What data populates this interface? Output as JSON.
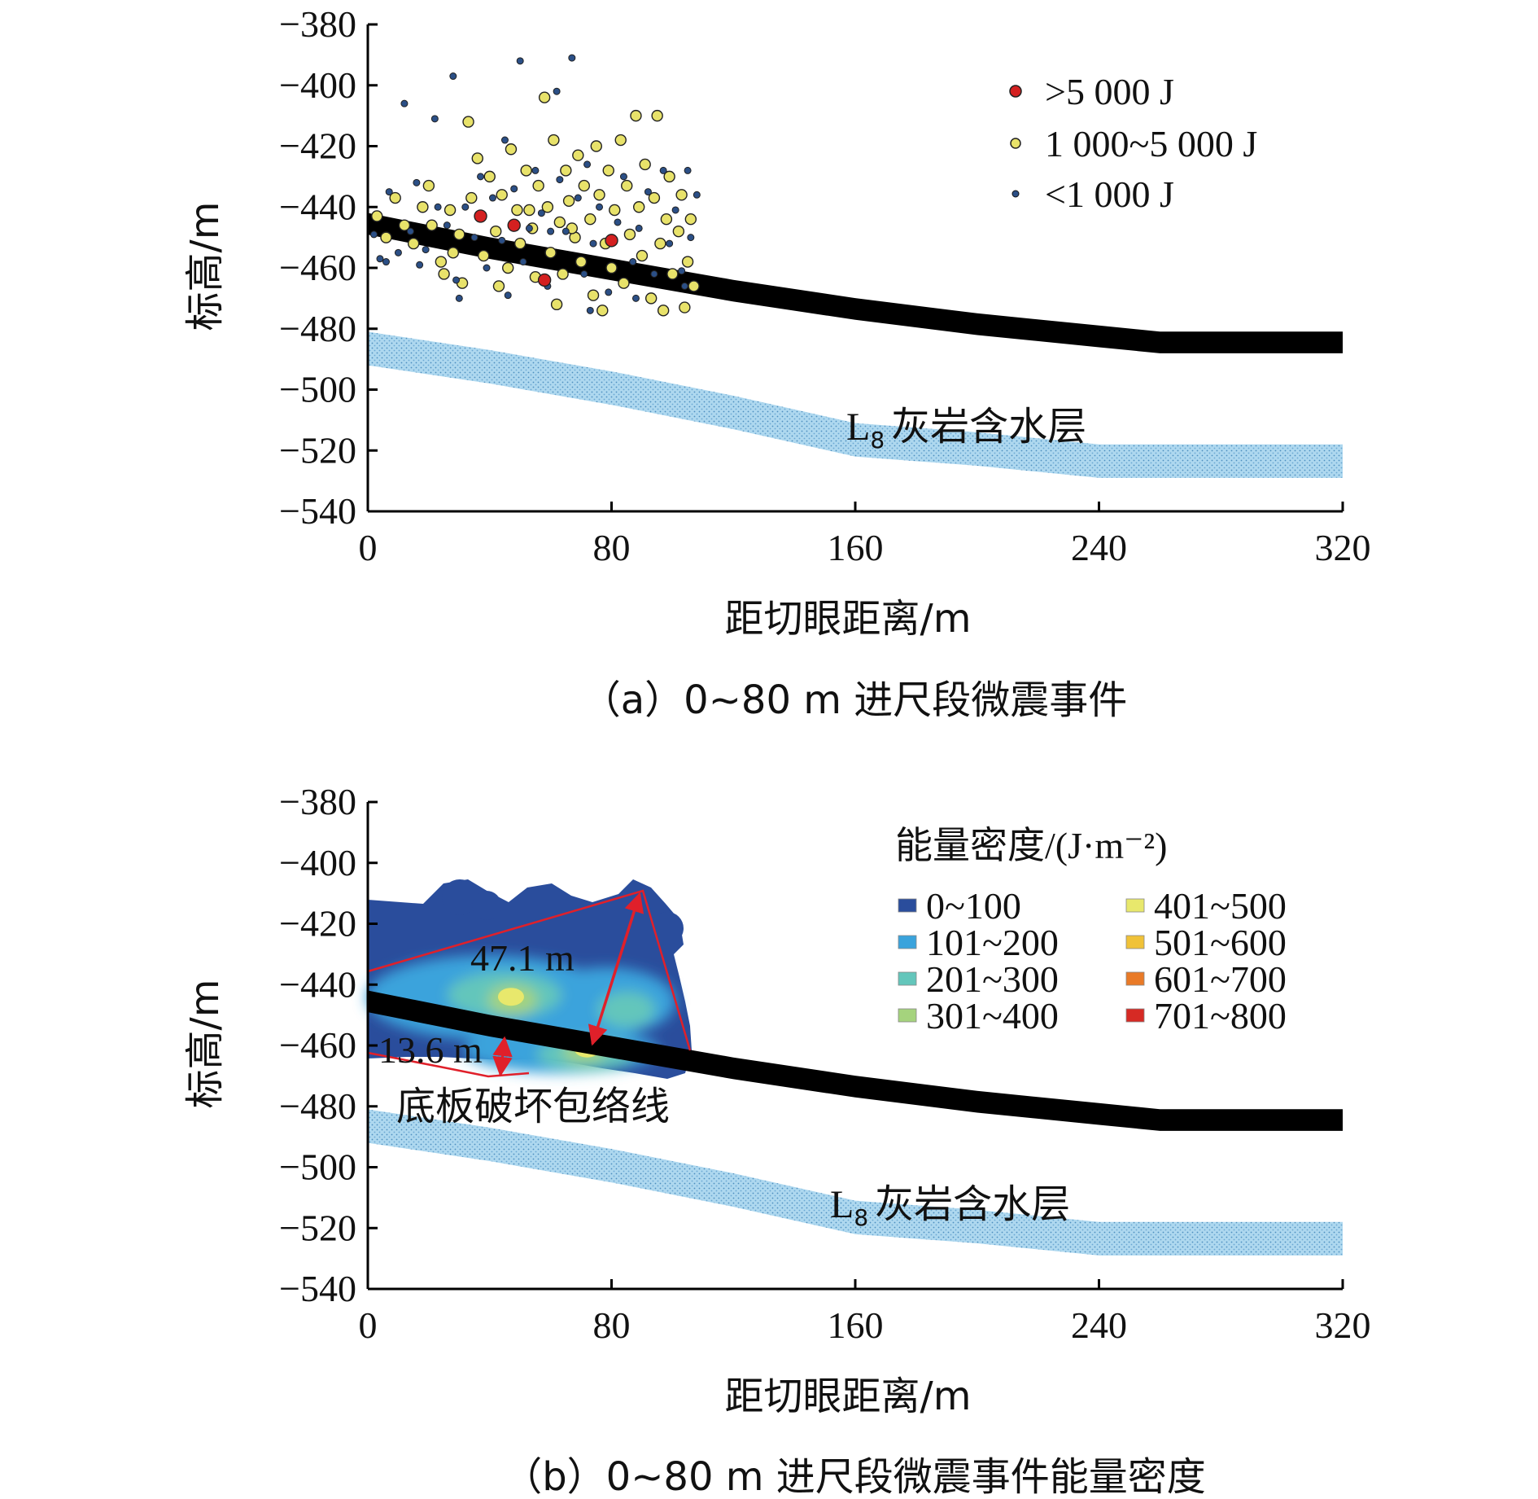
{
  "chart_data": [
    {
      "panel": "a",
      "type": "scatter",
      "caption": "（a）0~80 m 进尺段微震事件",
      "xlabel": "距切眼距离/m",
      "ylabel": "标高/m",
      "xlim": [
        0,
        320
      ],
      "ylim": [
        -540,
        -380
      ],
      "xticks": [
        0,
        80,
        160,
        240,
        320
      ],
      "yticks": [
        -380,
        -400,
        -420,
        -440,
        -460,
        -480,
        -500,
        -520,
        -540
      ],
      "legend_position": "top-right",
      "series": [
        {
          "name": ">5 000 J",
          "color": "#d42020",
          "points": [
            [
              37,
              -443
            ],
            [
              48,
              -446
            ],
            [
              58,
              -464
            ],
            [
              80,
              -451
            ]
          ]
        },
        {
          "name": "1 000~5 000 J",
          "color": "#e8e26a",
          "points": [
            [
              3,
              -443
            ],
            [
              6,
              -450
            ],
            [
              9,
              -437
            ],
            [
              12,
              -446
            ],
            [
              15,
              -452
            ],
            [
              18,
              -440
            ],
            [
              21,
              -446
            ],
            [
              24,
              -458
            ],
            [
              27,
              -441
            ],
            [
              30,
              -449
            ],
            [
              33,
              -412
            ],
            [
              34,
              -437
            ],
            [
              36,
              -424
            ],
            [
              38,
              -456
            ],
            [
              40,
              -430
            ],
            [
              42,
              -448
            ],
            [
              44,
              -436
            ],
            [
              46,
              -460
            ],
            [
              47,
              -421
            ],
            [
              49,
              -441
            ],
            [
              50,
              -452
            ],
            [
              52,
              -428
            ],
            [
              54,
              -447
            ],
            [
              55,
              -463
            ],
            [
              56,
              -433
            ],
            [
              58,
              -404
            ],
            [
              59,
              -440
            ],
            [
              60,
              -455
            ],
            [
              61,
              -418
            ],
            [
              63,
              -445
            ],
            [
              64,
              -462
            ],
            [
              65,
              -428
            ],
            [
              66,
              -438
            ],
            [
              68,
              -450
            ],
            [
              69,
              -423
            ],
            [
              70,
              -458
            ],
            [
              71,
              -433
            ],
            [
              73,
              -444
            ],
            [
              74,
              -469
            ],
            [
              75,
              -420
            ],
            [
              76,
              -436
            ],
            [
              78,
              -452
            ],
            [
              79,
              -428
            ],
            [
              80,
              -460
            ],
            [
              81,
              -441
            ],
            [
              83,
              -418
            ],
            [
              84,
              -465
            ],
            [
              85,
              -433
            ],
            [
              86,
              -449
            ],
            [
              88,
              -410
            ],
            [
              89,
              -440
            ],
            [
              90,
              -456
            ],
            [
              91,
              -426
            ],
            [
              93,
              -470
            ],
            [
              94,
              -437
            ],
            [
              95,
              -410
            ],
            [
              96,
              -452
            ],
            [
              98,
              -444
            ],
            [
              99,
              -430
            ],
            [
              100,
              -462
            ],
            [
              102,
              -448
            ],
            [
              103,
              -436
            ],
            [
              104,
              -473
            ],
            [
              105,
              -458
            ],
            [
              106,
              -444
            ],
            [
              107,
              -466
            ],
            [
              25,
              -462
            ],
            [
              31,
              -465
            ],
            [
              43,
              -466
            ],
            [
              62,
              -472
            ],
            [
              77,
              -474
            ],
            [
              97,
              -474
            ],
            [
              20,
              -433
            ],
            [
              28,
              -455
            ],
            [
              53,
              -441
            ],
            [
              67,
              -447
            ]
          ]
        },
        {
          "name": "<1 000 J",
          "color": "#2b4f86",
          "points": [
            [
              2,
              -449
            ],
            [
              4,
              -457
            ],
            [
              7,
              -435
            ],
            [
              10,
              -455
            ],
            [
              12,
              -406
            ],
            [
              14,
              -448
            ],
            [
              16,
              -432
            ],
            [
              19,
              -454
            ],
            [
              22,
              -411
            ],
            [
              23,
              -440
            ],
            [
              26,
              -446
            ],
            [
              28,
              -397
            ],
            [
              29,
              -464
            ],
            [
              32,
              -440
            ],
            [
              35,
              -450
            ],
            [
              37,
              -430
            ],
            [
              39,
              -460
            ],
            [
              41,
              -437
            ],
            [
              44,
              -451
            ],
            [
              45,
              -418
            ],
            [
              48,
              -434
            ],
            [
              50,
              -392
            ],
            [
              51,
              -458
            ],
            [
              53,
              -447
            ],
            [
              55,
              -428
            ],
            [
              57,
              -442
            ],
            [
              59,
              -466
            ],
            [
              62,
              -402
            ],
            [
              63,
              -431
            ],
            [
              65,
              -448
            ],
            [
              67,
              -391
            ],
            [
              69,
              -437
            ],
            [
              71,
              -462
            ],
            [
              72,
              -426
            ],
            [
              74,
              -452
            ],
            [
              76,
              -440
            ],
            [
              79,
              -468
            ],
            [
              82,
              -445
            ],
            [
              84,
              -430
            ],
            [
              87,
              -458
            ],
            [
              89,
              -447
            ],
            [
              92,
              -435
            ],
            [
              94,
              -462
            ],
            [
              97,
              -428
            ],
            [
              99,
              -452
            ],
            [
              101,
              -441
            ],
            [
              103,
              -461
            ],
            [
              105,
              -428
            ],
            [
              106,
              -450
            ],
            [
              108,
              -436
            ],
            [
              6,
              -458
            ],
            [
              17,
              -459
            ],
            [
              30,
              -470
            ],
            [
              46,
              -469
            ],
            [
              60,
              -448
            ],
            [
              73,
              -474
            ],
            [
              88,
              -470
            ],
            [
              104,
              -466
            ]
          ]
        }
      ],
      "coal_seam": {
        "x": [
          0,
          40,
          80,
          120,
          160,
          200,
          240,
          260,
          320
        ],
        "top": [
          -443,
          -451,
          -458,
          -465,
          -471,
          -476,
          -480,
          -482,
          -482
        ],
        "bottom": [
          -448,
          -456,
          -463,
          -470,
          -476,
          -481,
          -485,
          -487,
          -487
        ]
      },
      "aquifer": {
        "label": "L₈ 灰岩含水层",
        "x": [
          0,
          40,
          80,
          120,
          160,
          200,
          240,
          260,
          320
        ],
        "top": [
          -481,
          -487,
          -494,
          -502,
          -511,
          -514,
          -518,
          -518,
          -518
        ],
        "bottom": [
          -492,
          -498,
          -505,
          -513,
          -522,
          -525,
          -529,
          -529,
          -529
        ]
      }
    },
    {
      "panel": "b",
      "type": "heatmap",
      "caption": "（b）0~80 m 进尺段微震事件能量密度",
      "xlabel": "距切眼距离/m",
      "ylabel": "标高/m",
      "xlim": [
        0,
        320
      ],
      "ylim": [
        -540,
        -380
      ],
      "xticks": [
        0,
        80,
        160,
        240,
        320
      ],
      "yticks": [
        -380,
        -400,
        -420,
        -440,
        -460,
        -480,
        -500,
        -520,
        -540
      ],
      "legend_title": "能量密度/(J·m⁻²)",
      "legend_position": "top-right",
      "legend": [
        {
          "label": "0~100",
          "color": "#2a4d9c"
        },
        {
          "label": "101~200",
          "color": "#3aa3dc"
        },
        {
          "label": "201~300",
          "color": "#63c6bb"
        },
        {
          "label": "301~400",
          "color": "#a5d37d"
        },
        {
          "label": "401~500",
          "color": "#e8e86c"
        },
        {
          "label": "501~600",
          "color": "#f0c238"
        },
        {
          "label": "601~700",
          "color": "#e97a27"
        },
        {
          "label": "701~800",
          "color": "#d62a24"
        }
      ],
      "hotspots": [
        {
          "x": 47,
          "y": -444,
          "level": "401~500"
        },
        {
          "x": 72,
          "y": -461,
          "level": "401~500"
        }
      ],
      "annotations": [
        {
          "text": "47.1 m",
          "x": 46,
          "y": -439
        },
        {
          "text": "13.6 m",
          "x": 13,
          "y": -462
        },
        {
          "text": "底板破坏包络线",
          "x": 63,
          "y": -480
        }
      ],
      "aquifer_label": "L₈ 灰岩含水层"
    }
  ]
}
